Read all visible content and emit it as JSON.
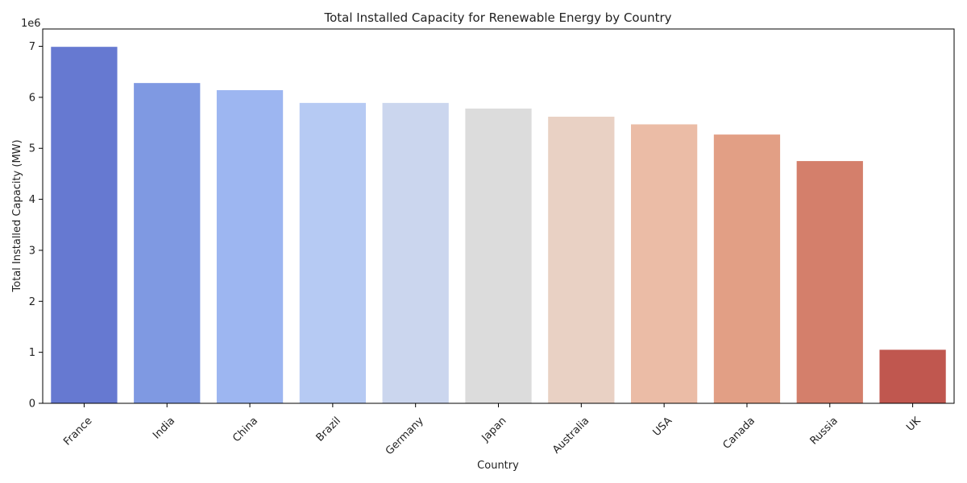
{
  "chart_data": {
    "type": "bar",
    "title": "Total Installed Capacity for Renewable Energy by Country",
    "xlabel": "Country",
    "ylabel": "Total Installed Capacity (MW)",
    "y_offset_label": "1e6",
    "categories": [
      "France",
      "India",
      "China",
      "Brazil",
      "Germany",
      "Japan",
      "Australia",
      "USA",
      "Canada",
      "Russia",
      "UK"
    ],
    "values": [
      6990000,
      6280000,
      6140000,
      5890000,
      5890000,
      5780000,
      5620000,
      5470000,
      5270000,
      4750000,
      1050000
    ],
    "colors": [
      "#6679d1",
      "#7f99e2",
      "#9db6f1",
      "#b6caf3",
      "#cbd6ee",
      "#dcdcdc",
      "#e9d1c4",
      "#ebbca6",
      "#e29f85",
      "#d47f6b",
      "#c0574f"
    ],
    "yticks": [
      0,
      1,
      2,
      3,
      4,
      5,
      6,
      7
    ],
    "ytick_scale": 1000000,
    "ylim": [
      0,
      7340000
    ],
    "grid": false,
    "legend": "none"
  }
}
